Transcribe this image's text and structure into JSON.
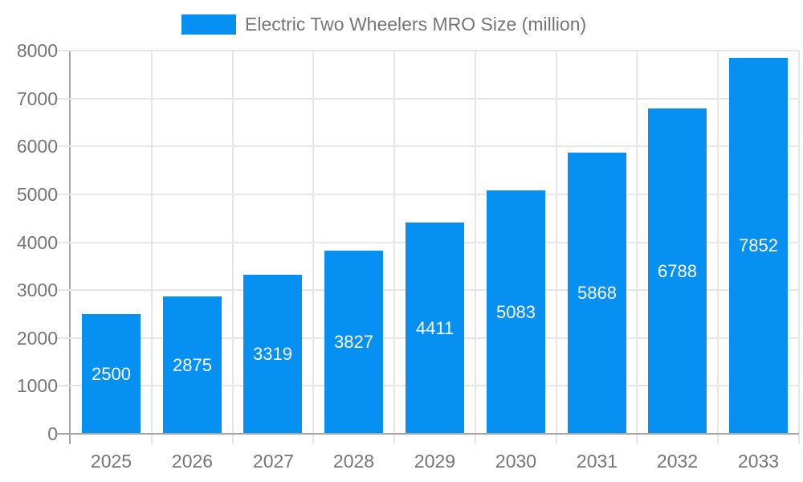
{
  "legend": {
    "label": "Electric Two Wheelers MRO Size (million)"
  },
  "palette": {
    "bar": "#0590f2",
    "text": "#757575",
    "grid": "#e6e6e6",
    "axis": "#a6a6a6",
    "value_label": "#ffffff",
    "background": "#ffffff"
  },
  "chart_data": {
    "type": "bar",
    "title": "Electric Two Wheelers MRO Size (million)",
    "series_name": "Electric Two Wheelers MRO Size (million)",
    "categories": [
      "2025",
      "2026",
      "2027",
      "2028",
      "2029",
      "2030",
      "2031",
      "2032",
      "2033"
    ],
    "values": [
      2500,
      2875,
      3319,
      3827,
      4411,
      5083,
      5868,
      6788,
      7852
    ],
    "xlabel": "",
    "ylabel": "",
    "ylim": [
      0,
      8000
    ],
    "yticks": [
      0,
      1000,
      2000,
      3000,
      4000,
      5000,
      6000,
      7000,
      8000
    ],
    "grid": true,
    "legend_position": "top",
    "value_label_position": "inside-center"
  }
}
